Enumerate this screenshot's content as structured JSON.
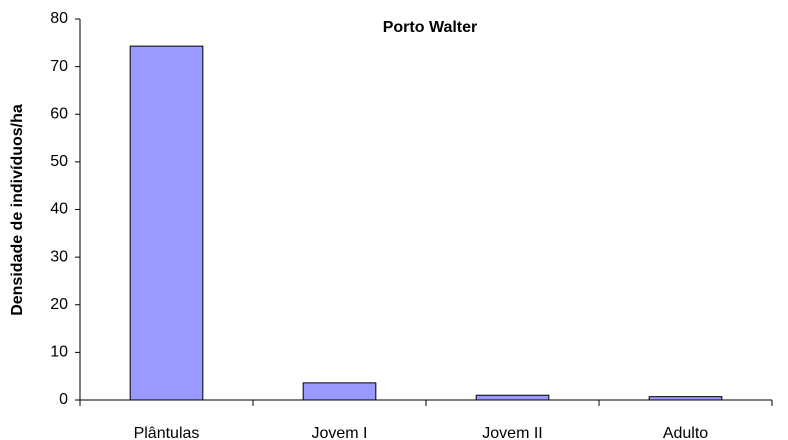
{
  "chart_data": {
    "type": "bar",
    "title": "Porto Walter",
    "y_label": "Densidade de indivíduos/ha",
    "categories": [
      "Plântulas",
      "Jovem I",
      "Jovem II",
      "Adulto"
    ],
    "values": [
      74.3,
      3.6,
      1.0,
      0.7
    ],
    "color": "#9999ff",
    "ylim": [
      0,
      80
    ],
    "yticks": [
      0,
      10,
      20,
      30,
      40,
      50,
      60,
      70,
      80
    ],
    "grid": false
  }
}
